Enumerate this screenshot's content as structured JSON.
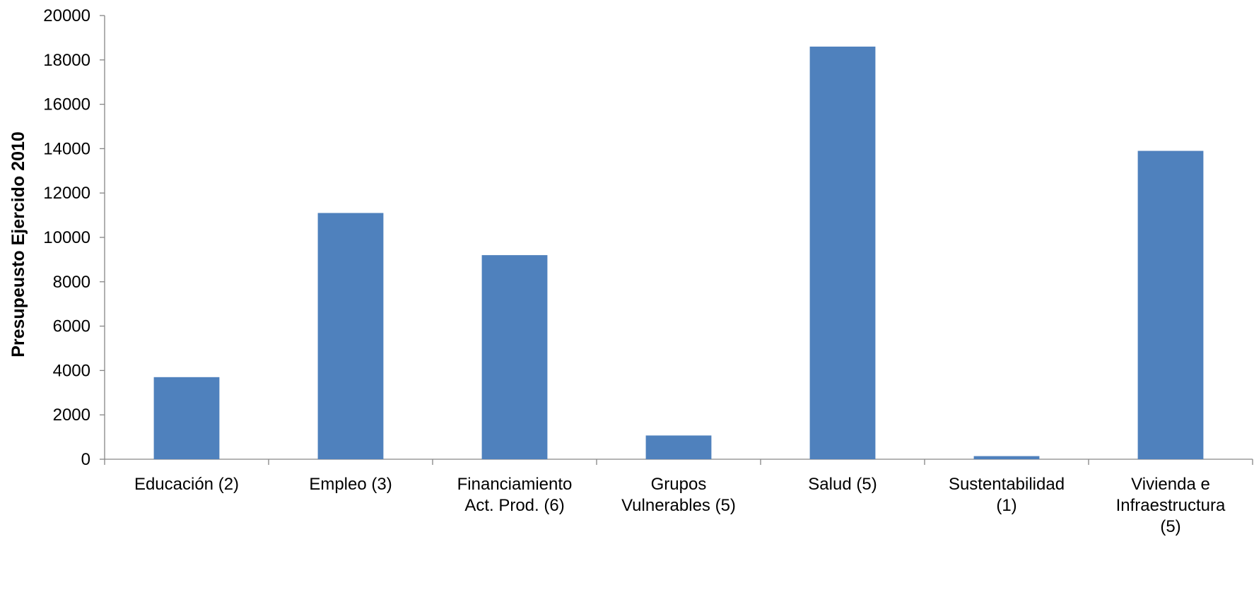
{
  "chart_data": {
    "type": "bar",
    "title": "",
    "xlabel": "",
    "ylabel": "Presupeusto Ejercido 2010",
    "ylim": [
      0,
      20000
    ],
    "yticks": [
      0,
      2000,
      4000,
      6000,
      8000,
      10000,
      12000,
      14000,
      16000,
      18000,
      20000
    ],
    "grid": false,
    "legend": "none",
    "categories": [
      [
        "Educación (2)"
      ],
      [
        "Empleo (3)"
      ],
      [
        "Financiamiento",
        "Act. Prod. (6)"
      ],
      [
        "Grupos",
        "Vulnerables (5)"
      ],
      [
        "Salud (5)"
      ],
      [
        "Sustentabilidad",
        "(1)"
      ],
      [
        "Vivienda e",
        "Infraestructura",
        "(5)"
      ]
    ],
    "values": [
      3700,
      11100,
      9200,
      1070,
      18600,
      140,
      13900
    ],
    "bar_color": "#4f81bd",
    "axis_color": "#868686"
  }
}
